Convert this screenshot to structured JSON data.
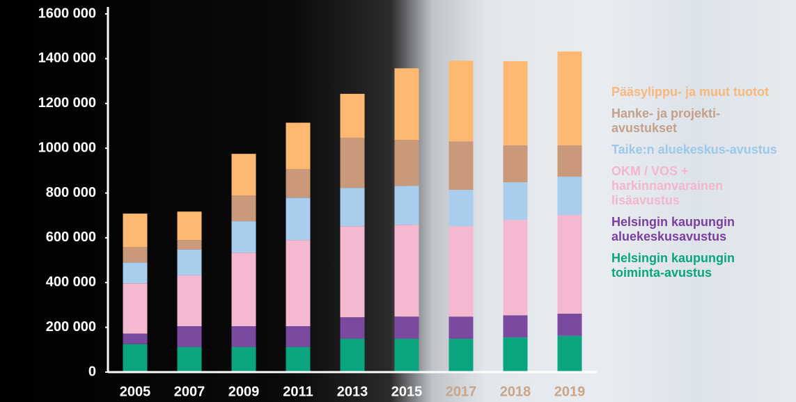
{
  "chart_data": {
    "type": "stacked_bar",
    "categories": [
      "2005",
      "2007",
      "2009",
      "2011",
      "2013",
      "2015",
      "2017",
      "2018",
      "2019"
    ],
    "series": [
      {
        "name": "Helsingin kaupungin toiminta-avustus",
        "color": "#0aa57f",
        "values": [
          125000,
          112000,
          112000,
          112000,
          149000,
          149000,
          149000,
          155000,
          162000
        ]
      },
      {
        "name": "Helsingin kaupungin aluekeskusavustus",
        "color": "#7b4aa0",
        "values": [
          47000,
          93000,
          93000,
          93000,
          96000,
          99000,
          99000,
          99000,
          99000
        ]
      },
      {
        "name": "OKM / VOS + harkinnanvarainen lisäavustus",
        "color": "#f4b8d0",
        "values": [
          225000,
          227000,
          329000,
          385000,
          407000,
          410000,
          404000,
          426000,
          441000
        ]
      },
      {
        "name": "Taike:n aluekeskus-avustus",
        "color": "#a9cdec",
        "values": [
          93000,
          115000,
          140000,
          189000,
          171000,
          174000,
          162000,
          168000,
          171000
        ]
      },
      {
        "name": "Hanke- ja projekti-avustukset",
        "color": "#c9997a",
        "values": [
          68000,
          43000,
          115000,
          127000,
          224000,
          205000,
          217000,
          165000,
          140000
        ]
      },
      {
        "name": "Pääsylippu- ja muut tuotot",
        "color": "#fdb872",
        "values": [
          150000,
          127000,
          186000,
          208000,
          196000,
          320000,
          360000,
          376000,
          419000
        ]
      }
    ],
    "ylim": [
      0,
      1600000
    ],
    "yticks": [
      0,
      {
        "value": 200000,
        "label": "200 000"
      },
      {
        "value": 400000,
        "label": "400 000"
      },
      {
        "value": 600000,
        "label": "600 000"
      },
      {
        "value": 800000,
        "label": "800 000"
      },
      {
        "value": 1000000,
        "label": "1000 000"
      },
      {
        "value": 1200000,
        "label": "1200 000"
      },
      {
        "value": 1400000,
        "label": "1400 000"
      },
      {
        "value": 1600000,
        "label": "1600 000"
      }
    ]
  }
}
